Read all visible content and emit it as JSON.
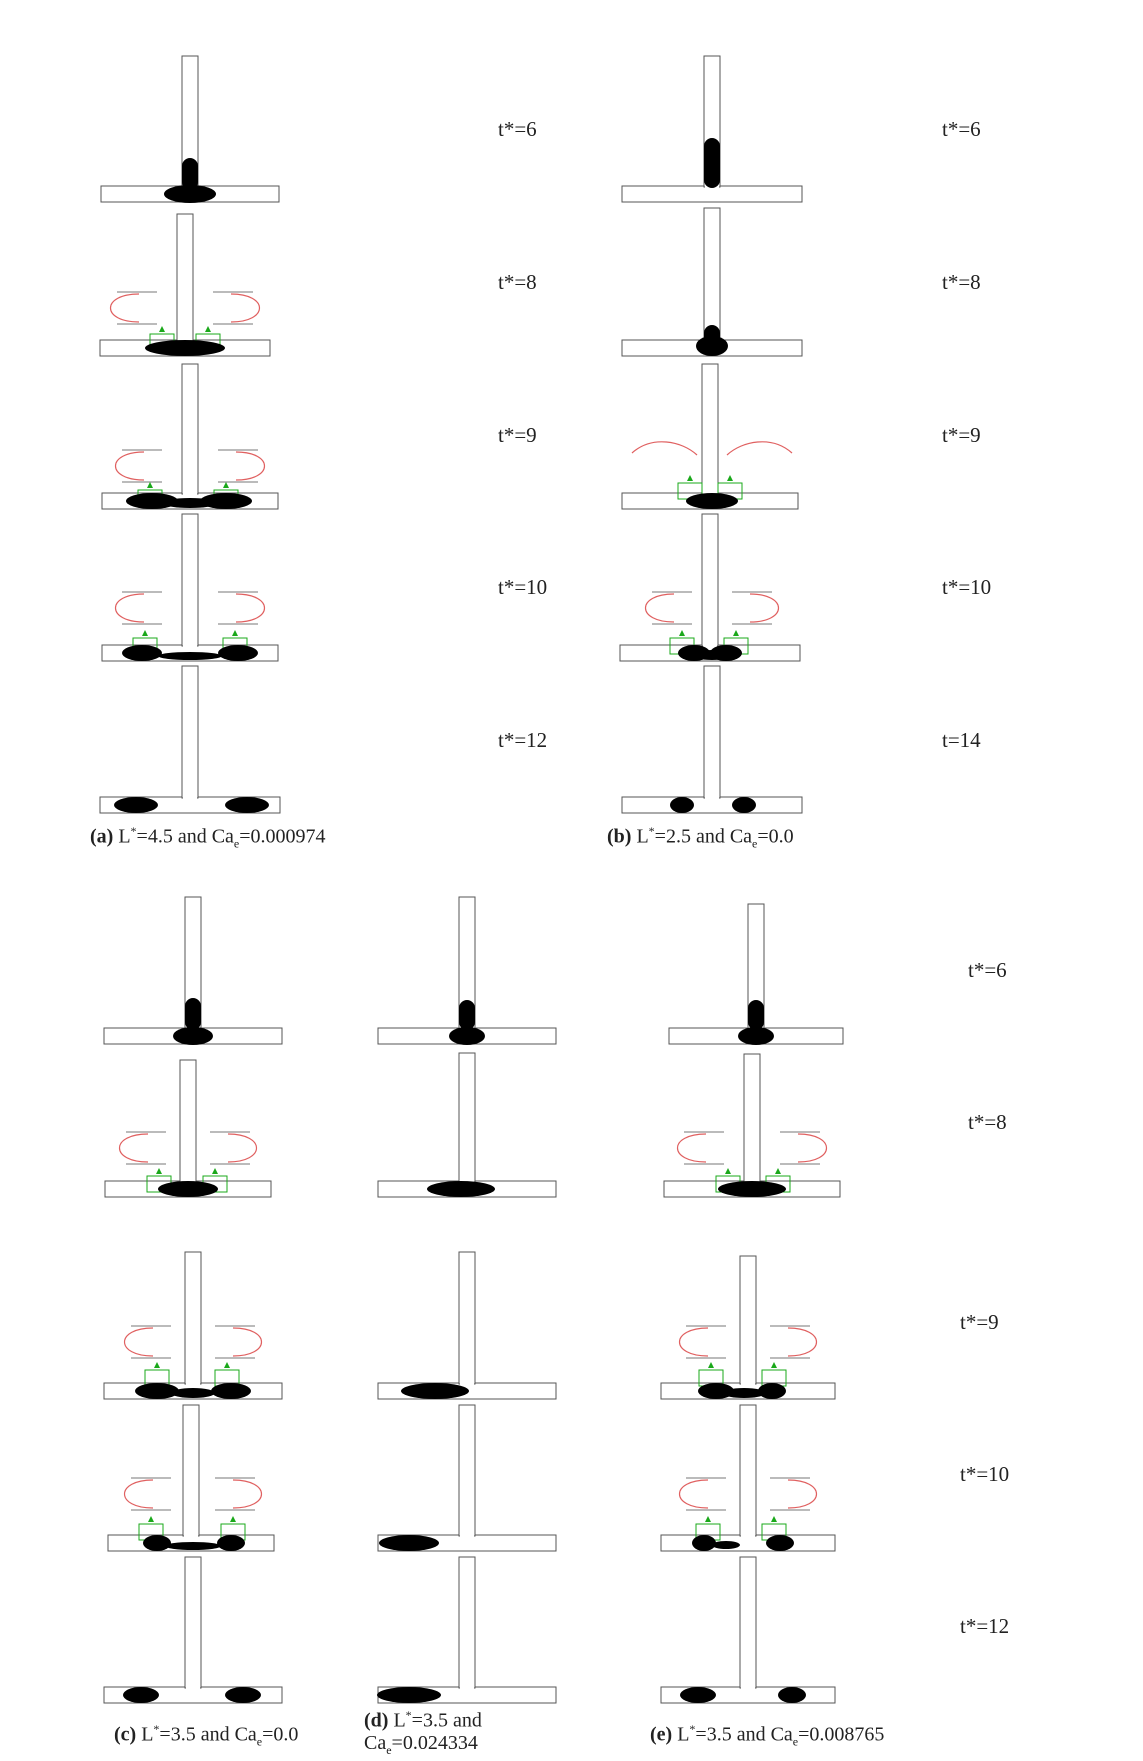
{
  "panels": [
    {
      "id": "a",
      "caption": {
        "letter": "(a)",
        "l": "L",
        "l_sup": "*",
        "l_val": "=4.5 and Ca",
        "ca_sub": "e",
        "ca_val": "=0.000974"
      },
      "time_labels": [
        "t*=6",
        "t*=8",
        "t*=9",
        "t*=10",
        "t*=12"
      ]
    },
    {
      "id": "b",
      "caption": {
        "letter": "(b)",
        "l": "L",
        "l_sup": "*",
        "l_val": "=2.5 and Ca",
        "ca_sub": "e",
        "ca_val": "=0.0"
      },
      "time_labels": [
        "t*=6",
        "t*=8",
        "t*=9",
        "t*=10",
        "t=14"
      ]
    },
    {
      "id": "c",
      "caption": {
        "letter": "(c)",
        "l": "L",
        "l_sup": "*",
        "l_val": "=3.5 and Ca",
        "ca_sub": "e",
        "ca_val": "=0.0"
      }
    },
    {
      "id": "d",
      "caption": {
        "letter": "(d)",
        "l": "L",
        "l_sup": "*",
        "l_val": "=3.5 and",
        "ca": "Ca",
        "ca_sub": "e",
        "ca_val": "=0.024334"
      }
    },
    {
      "id": "e",
      "caption": {
        "letter": "(e)",
        "l": "L",
        "l_sup": "*",
        "l_val": "=3.5 and Ca",
        "ca_sub": "e",
        "ca_val": "=0.008765"
      }
    }
  ],
  "bottom_time_labels": [
    "t*=6",
    "t*=8",
    "t*=9",
    "t*=10",
    "t*=12"
  ],
  "colors": {
    "channel_stroke": "#555555",
    "droplet": "#000000",
    "streamline": "#e06060",
    "arrow": "#1aa81a"
  }
}
